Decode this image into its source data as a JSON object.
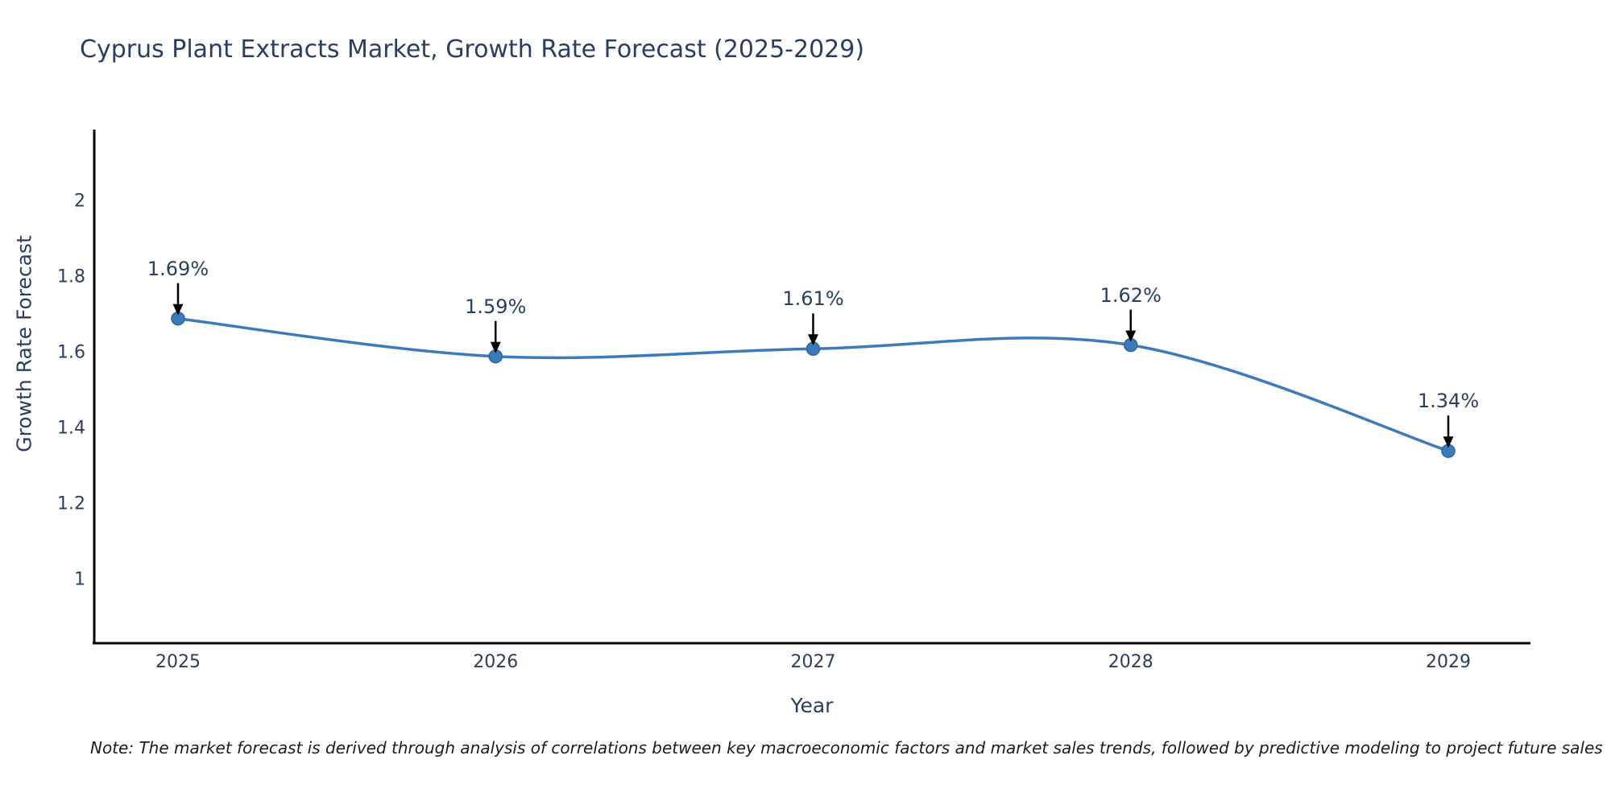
{
  "chart": {
    "title": "Cyprus Plant Extracts Market, Growth Rate Forecast (2025-2029)",
    "xlabel": "Year",
    "ylabel": "Growth Rate Forecast",
    "note": "Note: The market forecast is derived through analysis of correlations between key macroeconomic factors and market sales trends, followed by predictive modeling to project future sales"
  },
  "chart_data": {
    "type": "line",
    "title": "Cyprus Plant Extracts Market, Growth Rate Forecast (2025-2029)",
    "xlabel": "Year",
    "ylabel": "Growth Rate Forecast",
    "x": [
      2025,
      2026,
      2027,
      2028,
      2029
    ],
    "series": [
      {
        "name": "Growth Rate Forecast",
        "values": [
          1.69,
          1.59,
          1.61,
          1.62,
          1.34
        ]
      }
    ],
    "annotations": [
      "1.69%",
      "1.59%",
      "1.61%",
      "1.62%",
      "1.34%"
    ],
    "xticks": [
      "2025",
      "2026",
      "2027",
      "2028",
      "2029"
    ],
    "yticks": [
      "1",
      "1.2",
      "1.4",
      "1.6",
      "1.8",
      "2"
    ],
    "ytick_values": [
      1,
      1.2,
      1.4,
      1.6,
      1.8,
      2
    ],
    "ylim": [
      0.83,
      2.19
    ],
    "line_shape": "spline",
    "grid": false,
    "legend": "none",
    "colors": {
      "line": "#3d7ab8",
      "marker": "#3d7ab8",
      "marker_edge": "#2a679f",
      "axis": "#000000",
      "arrow": "#000000",
      "text": "#2a3f5f"
    }
  }
}
